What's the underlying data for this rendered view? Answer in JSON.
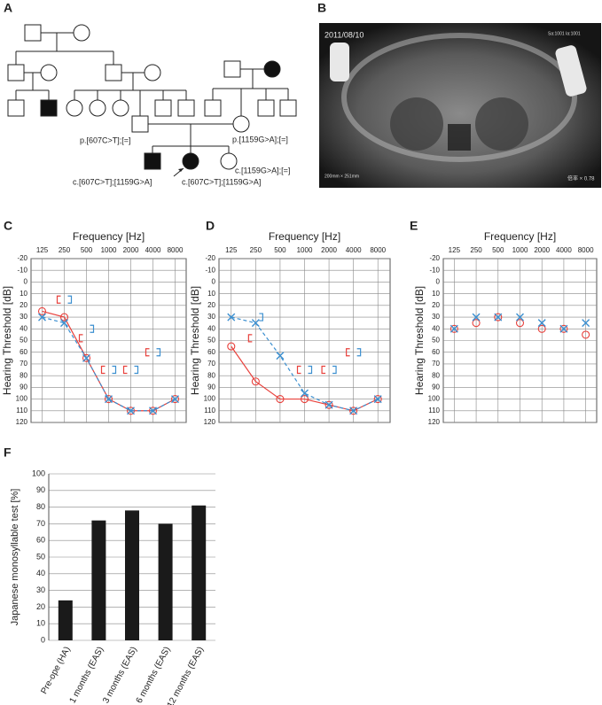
{
  "panel_labels": [
    "A",
    "B",
    "C",
    "D",
    "E",
    "F"
  ],
  "pedigree": {
    "labels": [
      "p.[607C>T];[=]",
      "p.[1159G>A];[=]",
      "c.[1159G>A];[=]",
      "c.[607C>T];[1159G>A]",
      "c.[607C>T];[1159G>A]"
    ]
  },
  "xray": {
    "date": "2011/08/10",
    "id": "Sa:1001 Ia:1001",
    "size": "200mm × 251mm",
    "mag": "倍率 × 0.78"
  },
  "chart_data": [
    {
      "type": "audiogram",
      "title": "Frequency [Hz]",
      "y_label": "Hearing Threshold [dB]",
      "categories": [
        "125",
        "250",
        "500",
        "1000",
        "2000",
        "4000",
        "8000"
      ],
      "ylim": [
        -20,
        120
      ],
      "y_reversed": true,
      "grid": true,
      "yticks": [
        -20,
        -10,
        0,
        10,
        20,
        30,
        40,
        50,
        60,
        70,
        80,
        90,
        100,
        110,
        120
      ],
      "series": [
        {
          "color": "#e8413c",
          "marker": "circle",
          "line": "solid",
          "values": [
            25,
            30,
            65,
            100,
            110,
            110,
            100
          ]
        },
        {
          "color": "#3b8fd0",
          "marker": "cross",
          "line": "dashed",
          "values": [
            30,
            35,
            65,
            100,
            110,
            110,
            100
          ]
        },
        {
          "color": "#e8413c",
          "marker": "bracket-left",
          "line": "none",
          "values": [
            null,
            15,
            48,
            75,
            75,
            60,
            null
          ]
        },
        {
          "color": "#3b8fd0",
          "marker": "bracket-right",
          "line": "none",
          "values": [
            null,
            15,
            40,
            75,
            75,
            60,
            null
          ]
        }
      ]
    },
    {
      "type": "audiogram",
      "title": "Frequency [Hz]",
      "y_label": "Hearing Threshold [dB]",
      "categories": [
        "125",
        "250",
        "500",
        "1000",
        "2000",
        "4000",
        "8000"
      ],
      "ylim": [
        -20,
        120
      ],
      "y_reversed": true,
      "grid": true,
      "yticks": [
        -20,
        -10,
        0,
        10,
        20,
        30,
        40,
        50,
        60,
        70,
        80,
        90,
        100,
        110,
        120
      ],
      "series": [
        {
          "color": "#e8413c",
          "marker": "circle",
          "line": "solid",
          "values": [
            55,
            85,
            100,
            100,
            105,
            110,
            100
          ]
        },
        {
          "color": "#3b8fd0",
          "marker": "cross",
          "line": "dashed",
          "values": [
            30,
            35,
            63,
            95,
            105,
            110,
            100
          ]
        },
        {
          "color": "#e8413c",
          "marker": "bracket-left",
          "line": "none",
          "values": [
            null,
            48,
            null,
            75,
            75,
            60,
            null
          ]
        },
        {
          "color": "#3b8fd0",
          "marker": "bracket-right",
          "line": "none",
          "values": [
            null,
            30,
            null,
            75,
            75,
            60,
            null
          ]
        }
      ]
    },
    {
      "type": "audiogram",
      "title": "Frequency [Hz]",
      "y_label": "Hearing Threshold [dB]",
      "categories": [
        "125",
        "250",
        "500",
        "1000",
        "2000",
        "4000",
        "8000"
      ],
      "ylim": [
        -20,
        120
      ],
      "y_reversed": true,
      "grid": true,
      "yticks": [
        -20,
        -10,
        0,
        10,
        20,
        30,
        40,
        50,
        60,
        70,
        80,
        90,
        100,
        110,
        120
      ],
      "series": [
        {
          "color": "#e8413c",
          "marker": "circle",
          "line": "none",
          "values": [
            40,
            35,
            30,
            35,
            40,
            40,
            45
          ]
        },
        {
          "color": "#3b8fd0",
          "marker": "cross",
          "line": "none",
          "values": [
            40,
            30,
            30,
            30,
            35,
            40,
            35
          ]
        }
      ]
    },
    {
      "type": "bar",
      "y_label": "Japanese monosyllable test [%]",
      "categories": [
        "Pre-ope (HA)",
        "1 months (EAS)",
        "3 months (EAS)",
        "6 months (EAS)",
        "12 months (EAS)"
      ],
      "values": [
        24,
        72,
        78,
        70,
        81
      ],
      "color": "#1a1a1a",
      "ylim": [
        0,
        100
      ],
      "yticks": [
        0,
        10,
        20,
        30,
        40,
        50,
        60,
        70,
        80,
        90,
        100
      ],
      "grid": true
    }
  ]
}
